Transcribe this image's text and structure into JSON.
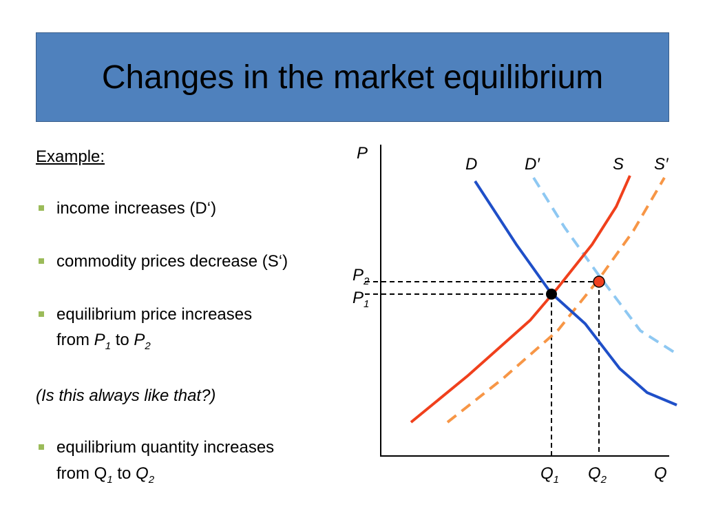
{
  "title": "Changes in the market equilibrium",
  "example_label": "Example:",
  "bullets": [
    {
      "text": "income increases (D‘)"
    },
    {
      "text": "commodity prices decrease (S‘)"
    },
    {
      "line1": "equilibrium price increases",
      "line2": [
        "from ",
        "P",
        "1",
        " to ",
        "P",
        "2"
      ]
    },
    {
      "line1": "equilibrium quantity increases",
      "line2": [
        "from Q",
        "1",
        " to ",
        "Q",
        "2"
      ]
    }
  ],
  "question": "(Is this always like that?)",
  "diagram": {
    "y_axis_label": "P",
    "x_axis_label": "Q",
    "curve_labels": [
      "D",
      "D′",
      "S",
      "S′"
    ],
    "price_labels": [
      [
        "P",
        "2"
      ],
      [
        "P",
        "1"
      ]
    ],
    "quantity_labels": [
      [
        "Q",
        "1"
      ],
      [
        "Q",
        "2"
      ]
    ]
  }
}
